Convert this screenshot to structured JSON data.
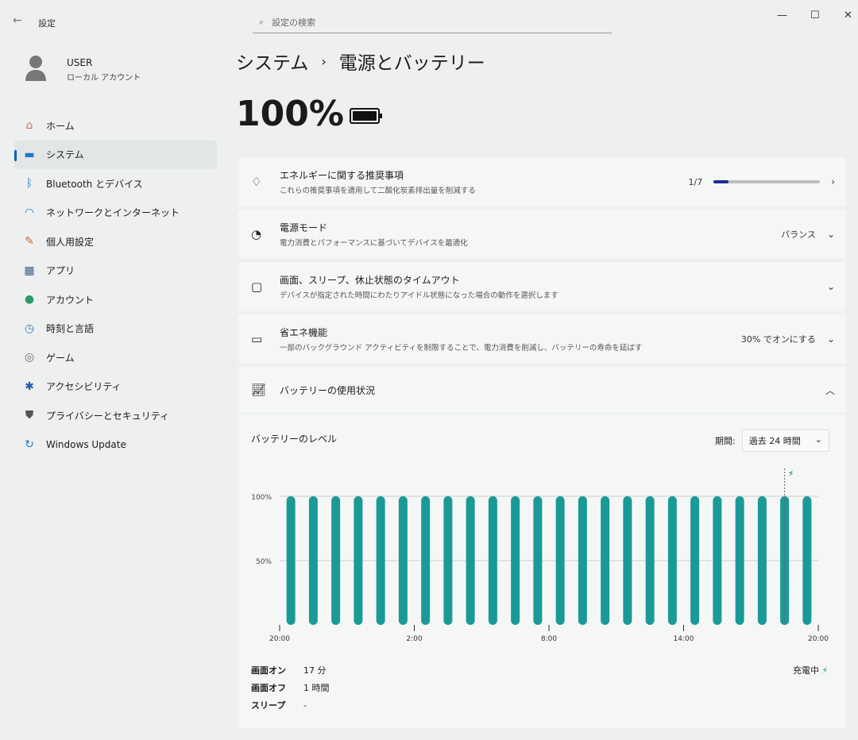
{
  "window": {
    "title": "設定",
    "search_placeholder": "設定の検索"
  },
  "user": {
    "name": "USER",
    "account": "ローカル アカウント"
  },
  "sidebar": {
    "items": [
      {
        "label": "ホーム",
        "icon": "home-icon",
        "color": "#d86a3a"
      },
      {
        "label": "システム",
        "icon": "system-icon",
        "color": "#1e78c8",
        "selected": true
      },
      {
        "label": "Bluetooth とデバイス",
        "icon": "bluetooth-icon",
        "color": "#1e78c8"
      },
      {
        "label": "ネットワークとインターネット",
        "icon": "wifi-icon",
        "color": "#1e78c8"
      },
      {
        "label": "個人用設定",
        "icon": "brush-icon",
        "color": "#c76a2a"
      },
      {
        "label": "アプリ",
        "icon": "apps-icon",
        "color": "#3a5a8a"
      },
      {
        "label": "アカウント",
        "icon": "account-icon",
        "color": "#2a9a6a"
      },
      {
        "label": "時刻と言語",
        "icon": "clock-globe-icon",
        "color": "#2a7ab8"
      },
      {
        "label": "ゲーム",
        "icon": "gamepad-icon",
        "color": "#666"
      },
      {
        "label": "アクセシビリティ",
        "icon": "accessibility-icon",
        "color": "#1e5fa8"
      },
      {
        "label": "プライバシーとセキュリティ",
        "icon": "shield-icon",
        "color": "#555"
      },
      {
        "label": "Windows Update",
        "icon": "update-icon",
        "color": "#1e78c8"
      }
    ]
  },
  "breadcrumb": {
    "parent": "システム",
    "separator": "›",
    "current": "電源とバッテリー"
  },
  "battery": {
    "percent": "100%",
    "level": 100
  },
  "cards": [
    {
      "title": "エネルギーに関する推奨事項",
      "subtitle": "これらの推奨事項を適用して二酸化炭素排出量を削減する",
      "value": "1/7",
      "progress": 0.143,
      "icon": "leaf-icon"
    },
    {
      "title": "電源モード",
      "subtitle": "電力消費とパフォーマンスに基づいてデバイスを最適化",
      "value": "バランス",
      "icon": "power-mode-icon"
    },
    {
      "title": "画面、スリープ、休止状態のタイムアウト",
      "subtitle": "デバイスが指定された時間にわたりアイドル状態になった場合の動作を選択します",
      "value": "",
      "icon": "screen-sleep-icon"
    },
    {
      "title": "省エネ機能",
      "subtitle": "一部のバックグラウンド アクティビティを制限することで、電力消費を削減し、バッテリーの寿命を延ばす",
      "value": "30% でオンにする",
      "icon": "battery-saver-icon"
    }
  ],
  "usage": {
    "title": "バッテリーの使用状況",
    "level_label": "バッテリーのレベル",
    "period_label": "期間:",
    "period_value": "過去 24 時間",
    "stats": [
      {
        "label": "画面オン",
        "value": "17 分"
      },
      {
        "label": "画面オフ",
        "value": "1 時間"
      },
      {
        "label": "スリープ",
        "value": "-"
      }
    ],
    "charging": "充電中"
  },
  "chart_data": {
    "type": "bar",
    "yticks": [
      "100%",
      "50%"
    ],
    "ylim": [
      0,
      100
    ],
    "xticks": [
      "20:00",
      "2:00",
      "8:00",
      "14:00",
      "20:00"
    ],
    "values": [
      100,
      100,
      100,
      100,
      100,
      100,
      100,
      100,
      100,
      100,
      100,
      100,
      100,
      100,
      100,
      100,
      100,
      100,
      100,
      100,
      100,
      100,
      100,
      100
    ],
    "bar_color": "#1a9a96",
    "charging_marker_hour": 22.5
  }
}
